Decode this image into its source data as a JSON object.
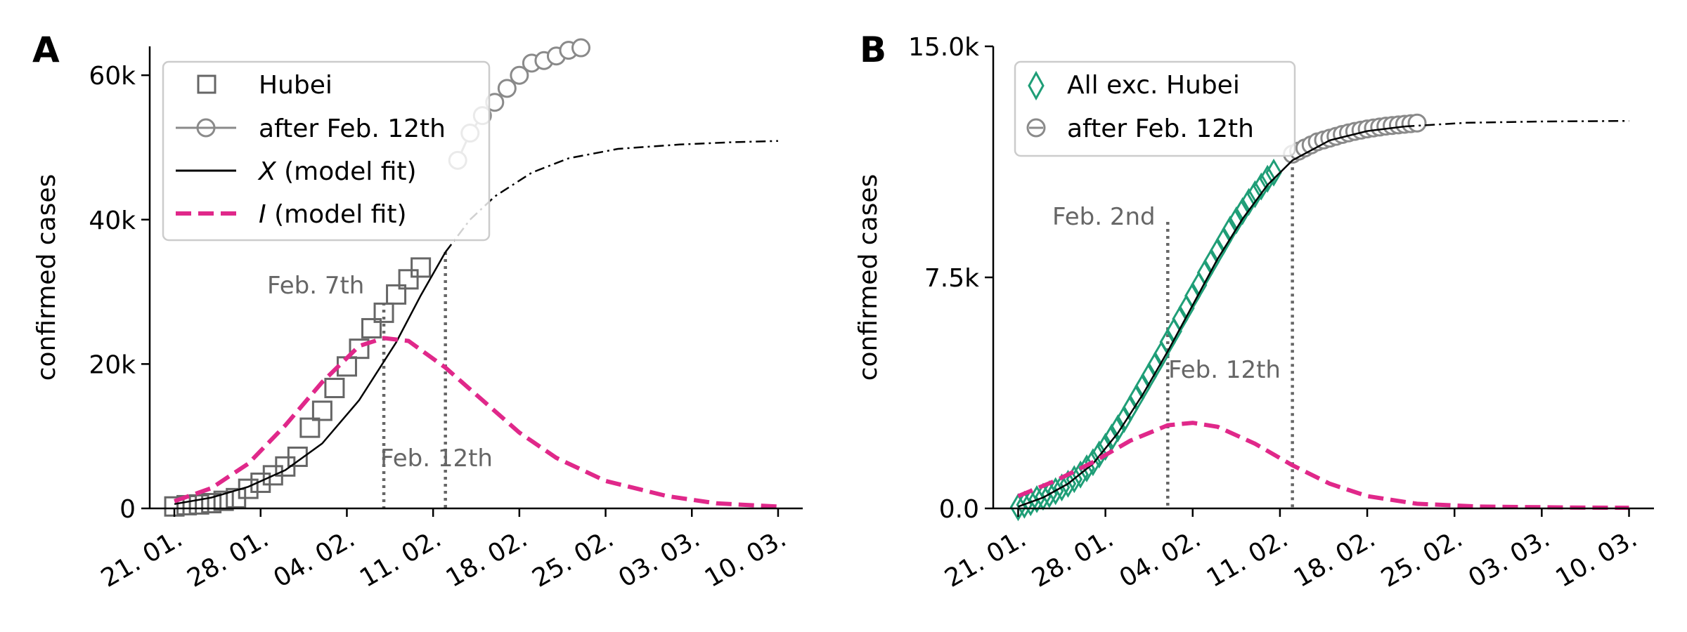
{
  "colors": {
    "hubei": "#666666",
    "after": "#8a8a8a",
    "model_x": "#000000",
    "model_i": "#e0288a",
    "non_hubei": "#1f9e77",
    "annotation": "#666666"
  },
  "x_ticks": [
    "21. 01.",
    "28. 01.",
    "04. 02.",
    "11. 02.",
    "18. 02.",
    "25. 02.",
    "03. 03.",
    "10. 03."
  ],
  "chart_data": [
    {
      "type": "line",
      "panel_label": "A",
      "ylabel": "confirmed cases",
      "xlim": [
        "2020-01-19",
        "2020-03-12"
      ],
      "ylim": [
        0,
        64000
      ],
      "y_ticks": [
        {
          "value": 0,
          "label": "0"
        },
        {
          "value": 20000,
          "label": "20k"
        },
        {
          "value": 40000,
          "label": "40k"
        },
        {
          "value": 60000,
          "label": "60k"
        }
      ],
      "legend": {
        "placement": "upper-left",
        "entries": [
          {
            "marker": "square",
            "text": "Hubei"
          },
          {
            "marker": "circle-line",
            "text": "after Feb. 12th"
          },
          {
            "marker": "solid-line",
            "var": "X",
            "text": " (model fit)"
          },
          {
            "marker": "dashed-line",
            "var": "I",
            "text": " (model fit)"
          }
        ]
      },
      "annotations": [
        {
          "date": "2020-02-07",
          "text": "Feb. 7th",
          "placement": "upper-left"
        },
        {
          "date": "2020-02-12",
          "text": "Feb. 12th",
          "placement": "lower-center"
        }
      ],
      "series": [
        {
          "name": "Hubei",
          "style": "square",
          "points": [
            [
              "2020-01-21",
              270
            ],
            [
              "2020-01-22",
              444
            ],
            [
              "2020-01-23",
              549
            ],
            [
              "2020-01-24",
              729
            ],
            [
              "2020-01-25",
              1052
            ],
            [
              "2020-01-26",
              1423
            ],
            [
              "2020-01-27",
              2714
            ],
            [
              "2020-01-28",
              3554
            ],
            [
              "2020-01-29",
              4586
            ],
            [
              "2020-01-30",
              5806
            ],
            [
              "2020-01-31",
              7153
            ],
            [
              "2020-02-01",
              11177
            ],
            [
              "2020-02-02",
              13522
            ],
            [
              "2020-02-03",
              16678
            ],
            [
              "2020-02-04",
              19665
            ],
            [
              "2020-02-05",
              22112
            ],
            [
              "2020-02-06",
              24953
            ],
            [
              "2020-02-07",
              27100
            ],
            [
              "2020-02-08",
              29631
            ],
            [
              "2020-02-09",
              31728
            ],
            [
              "2020-02-10",
              33366
            ]
          ]
        },
        {
          "name": "after Feb. 12th",
          "style": "circle-line",
          "points": [
            [
              "2020-02-13",
              48206
            ],
            [
              "2020-02-14",
              51986
            ],
            [
              "2020-02-15",
              54406
            ],
            [
              "2020-02-16",
              56249
            ],
            [
              "2020-02-17",
              58182
            ],
            [
              "2020-02-18",
              59989
            ],
            [
              "2020-02-19",
              61682
            ],
            [
              "2020-02-20",
              62031
            ],
            [
              "2020-02-21",
              62662
            ],
            [
              "2020-02-22",
              63454
            ],
            [
              "2020-02-23",
              63800
            ]
          ]
        },
        {
          "name": "X (model fit)",
          "style": "solid-then-dashdot",
          "split_date": "2020-02-12",
          "points": [
            [
              "2020-01-21",
              600
            ],
            [
              "2020-01-24",
              1500
            ],
            [
              "2020-01-27",
              3000
            ],
            [
              "2020-01-30",
              5300
            ],
            [
              "2020-02-02",
              9000
            ],
            [
              "2020-02-05",
              15000
            ],
            [
              "2020-02-08",
              23000
            ],
            [
              "2020-02-10",
              29500
            ],
            [
              "2020-02-12",
              35500
            ],
            [
              "2020-02-14",
              40000
            ],
            [
              "2020-02-16",
              43200
            ],
            [
              "2020-02-19",
              46500
            ],
            [
              "2020-02-22",
              48500
            ],
            [
              "2020-02-26",
              49800
            ],
            [
              "2020-03-02",
              50400
            ],
            [
              "2020-03-06",
              50700
            ],
            [
              "2020-03-10",
              50900
            ]
          ]
        },
        {
          "name": "I (model fit)",
          "style": "dashed",
          "points": [
            [
              "2020-01-21",
              1000
            ],
            [
              "2020-01-24",
              2800
            ],
            [
              "2020-01-27",
              6200
            ],
            [
              "2020-01-30",
              11500
            ],
            [
              "2020-02-02",
              17500
            ],
            [
              "2020-02-05",
              22500
            ],
            [
              "2020-02-07",
              23600
            ],
            [
              "2020-02-09",
              23200
            ],
            [
              "2020-02-12",
              19500
            ],
            [
              "2020-02-15",
              15000
            ],
            [
              "2020-02-18",
              10500
            ],
            [
              "2020-02-21",
              7000
            ],
            [
              "2020-02-25",
              3800
            ],
            [
              "2020-03-01",
              1700
            ],
            [
              "2020-03-05",
              700
            ],
            [
              "2020-03-10",
              250
            ]
          ]
        }
      ]
    },
    {
      "type": "line",
      "panel_label": "B",
      "ylabel": "confirmed cases",
      "xlim": [
        "2020-01-19",
        "2020-03-12"
      ],
      "ylim": [
        0,
        15000
      ],
      "y_ticks": [
        {
          "value": 0,
          "label": "0.0"
        },
        {
          "value": 7500,
          "label": "7.5k"
        },
        {
          "value": 15000,
          "label": "15.0k"
        }
      ],
      "legend": {
        "placement": "upper-left",
        "entries": [
          {
            "marker": "diamond",
            "text": "All exc. Hubei"
          },
          {
            "marker": "circle",
            "text": "after Feb. 12th"
          }
        ]
      },
      "annotations": [
        {
          "date": "2020-02-02",
          "text": "Feb. 2nd",
          "placement": "upper-left"
        },
        {
          "date": "2020-02-12",
          "text": "Feb. 12th",
          "placement": "middle-left"
        }
      ],
      "series": [
        {
          "name": "All exc. Hubei",
          "style": "diamond",
          "points": [
            [
              "2020-01-21",
              40
            ],
            [
              "2020-01-21.5",
              120
            ],
            [
              "2020-01-22",
              200
            ],
            [
              "2020-01-22.5",
              300
            ],
            [
              "2020-01-23",
              380
            ],
            [
              "2020-01-23.5",
              460
            ],
            [
              "2020-01-24",
              560
            ],
            [
              "2020-01-24.5",
              680
            ],
            [
              "2020-01-25",
              800
            ],
            [
              "2020-01-25.5",
              950
            ],
            [
              "2020-01-26",
              1100
            ],
            [
              "2020-01-26.5",
              1300
            ],
            [
              "2020-01-27",
              1500
            ],
            [
              "2020-01-27.5",
              1750
            ],
            [
              "2020-01-28",
              2000
            ],
            [
              "2020-01-28.5",
              2300
            ],
            [
              "2020-01-29",
              2600
            ],
            [
              "2020-01-29.5",
              2900
            ],
            [
              "2020-01-30",
              3250
            ],
            [
              "2020-01-30.5",
              3600
            ],
            [
              "2020-01-31",
              3950
            ],
            [
              "2020-01-31.5",
              4300
            ],
            [
              "2020-02-01",
              4650
            ],
            [
              "2020-02-01.5",
              5000
            ],
            [
              "2020-02-02",
              5400
            ],
            [
              "2020-02-02.5",
              5750
            ],
            [
              "2020-02-03",
              6150
            ],
            [
              "2020-02-03.5",
              6500
            ],
            [
              "2020-02-04",
              6900
            ],
            [
              "2020-02-04.5",
              7250
            ],
            [
              "2020-02-05",
              7650
            ],
            [
              "2020-02-05.5",
              8000
            ],
            [
              "2020-02-06",
              8350
            ],
            [
              "2020-02-06.5",
              8700
            ],
            [
              "2020-02-07",
              9050
            ],
            [
              "2020-02-07.5",
              9350
            ],
            [
              "2020-02-08",
              9650
            ],
            [
              "2020-02-08.5",
              9950
            ],
            [
              "2020-02-09",
              10200
            ],
            [
              "2020-02-09.5",
              10450
            ],
            [
              "2020-02-10",
              10700
            ],
            [
              "2020-02-10.5",
              10900
            ]
          ]
        },
        {
          "name": "after Feb. 12th",
          "style": "circle",
          "points": [
            [
              "2020-02-12",
              11500
            ],
            [
              "2020-02-12.5",
              11600
            ],
            [
              "2020-02-13",
              11700
            ],
            [
              "2020-02-13.5",
              11800
            ],
            [
              "2020-02-14",
              11900
            ],
            [
              "2020-02-14.5",
              11960
            ],
            [
              "2020-02-15",
              12020
            ],
            [
              "2020-02-15.5",
              12080
            ],
            [
              "2020-02-16",
              12140
            ],
            [
              "2020-02-16.5",
              12190
            ],
            [
              "2020-02-17",
              12240
            ],
            [
              "2020-02-17.5",
              12280
            ],
            [
              "2020-02-18",
              12320
            ],
            [
              "2020-02-18.5",
              12350
            ],
            [
              "2020-02-19",
              12380
            ],
            [
              "2020-02-19.5",
              12410
            ],
            [
              "2020-02-20",
              12430
            ],
            [
              "2020-02-20.5",
              12450
            ],
            [
              "2020-02-21",
              12470
            ],
            [
              "2020-02-21.5",
              12490
            ],
            [
              "2020-02-22",
              12510
            ]
          ]
        },
        {
          "name": "X (model fit)",
          "style": "solid-then-dashdot",
          "split_date": "2020-02-21",
          "points": [
            [
              "2020-01-21",
              60
            ],
            [
              "2020-01-23",
              350
            ],
            [
              "2020-01-25",
              800
            ],
            [
              "2020-01-27",
              1450
            ],
            [
              "2020-01-29",
              2450
            ],
            [
              "2020-01-31",
              3700
            ],
            [
              "2020-02-02",
              5100
            ],
            [
              "2020-02-04",
              6600
            ],
            [
              "2020-02-06",
              8100
            ],
            [
              "2020-02-08",
              9400
            ],
            [
              "2020-02-10",
              10500
            ],
            [
              "2020-02-12",
              11300
            ],
            [
              "2020-02-15",
              11950
            ],
            [
              "2020-02-18",
              12250
            ],
            [
              "2020-02-21",
              12400
            ],
            [
              "2020-02-26",
              12520
            ],
            [
              "2020-03-03",
              12560
            ],
            [
              "2020-03-10",
              12580
            ]
          ]
        },
        {
          "name": "I (model fit)",
          "style": "dashed",
          "points": [
            [
              "2020-01-21",
              400
            ],
            [
              "2020-01-24",
              900
            ],
            [
              "2020-01-27",
              1500
            ],
            [
              "2020-01-30",
              2200
            ],
            [
              "2020-02-02",
              2700
            ],
            [
              "2020-02-04",
              2780
            ],
            [
              "2020-02-06",
              2650
            ],
            [
              "2020-02-09",
              2100
            ],
            [
              "2020-02-12",
              1400
            ],
            [
              "2020-02-15",
              800
            ],
            [
              "2020-02-18",
              400
            ],
            [
              "2020-02-22",
              150
            ],
            [
              "2020-02-27",
              60
            ],
            [
              "2020-03-05",
              30
            ],
            [
              "2020-03-10",
              20
            ]
          ]
        }
      ]
    }
  ]
}
